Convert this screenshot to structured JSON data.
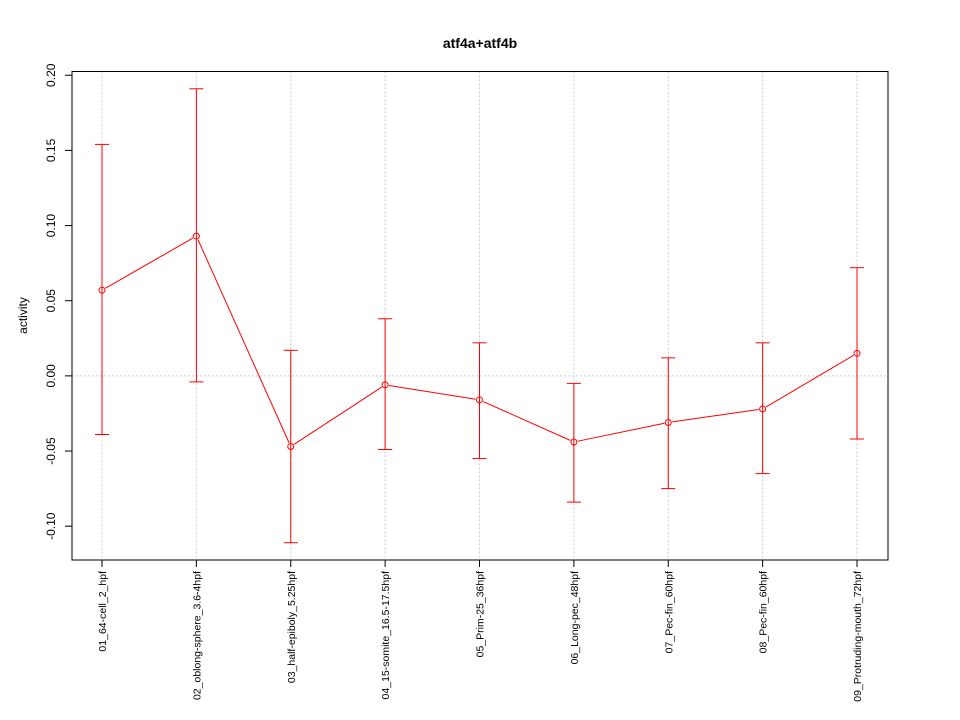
{
  "chart_data": {
    "type": "line",
    "title": "atf4a+atf4b",
    "xlabel": "",
    "ylabel": "activity",
    "ylim": [
      -0.1225,
      0.2025
    ],
    "yticks": [
      -0.1,
      -0.05,
      0.0,
      0.05,
      0.1,
      0.15,
      0.2
    ],
    "ytick_labels": [
      "-0.10",
      "-0.05",
      "0.00",
      "0.05",
      "0.10",
      "0.15",
      "0.20"
    ],
    "grid": true,
    "color": "#ff0000",
    "grid_color": "#cccccc",
    "categories": [
      "01_64-cell_2_hpf",
      "02_oblong-sphere_3.6-4hpf",
      "03_half-epiboly_5.25hpf",
      "04_15-somite_16.5-17.5hpf",
      "05_Prim-25_36hpf",
      "06_Long-pec_48hpf",
      "07_Pec-fin_60hpf",
      "08_Pec-fin_60hpf",
      "09_Protruding-mouth_72hpf"
    ],
    "values": [
      0.057,
      0.093,
      -0.047,
      -0.006,
      -0.016,
      -0.044,
      -0.031,
      -0.022,
      0.015
    ],
    "error_low": [
      -0.039,
      -0.004,
      -0.111,
      -0.049,
      -0.055,
      -0.084,
      -0.075,
      -0.065,
      -0.042
    ],
    "error_high": [
      0.154,
      0.191,
      0.017,
      0.038,
      0.022,
      -0.005,
      0.012,
      0.022,
      0.072
    ]
  }
}
